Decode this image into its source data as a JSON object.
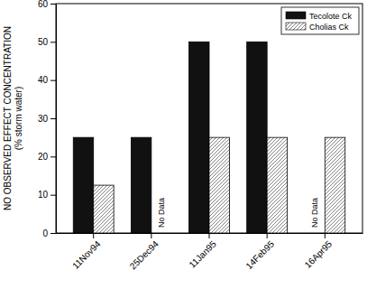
{
  "chart_data": {
    "type": "bar",
    "y_label": [
      "NO OBSERVED EFFECT CONCENTRATION",
      "(% storm water)"
    ],
    "categories": [
      "11Nov94",
      "25Dec94",
      "11Jan95",
      "14Feb95",
      "16Apr95"
    ],
    "series": [
      {
        "name": "Tecolote Ck",
        "color": "#111111",
        "values": [
          25,
          25,
          50,
          50,
          null
        ]
      },
      {
        "name": "Cholias Ck",
        "color": "#777777",
        "values": [
          12.5,
          null,
          25,
          25,
          25
        ]
      }
    ],
    "annotations": [
      {
        "text": "No Data",
        "category": "25Dec94",
        "series": "Cholias Ck"
      },
      {
        "text": "No Data",
        "category": "16Apr95",
        "series": "Tecolote Ck"
      }
    ],
    "ylim": [
      0,
      60
    ],
    "yticks": [
      0,
      10,
      20,
      30,
      40,
      50,
      60
    ],
    "grid": false,
    "legend": "upper right"
  }
}
